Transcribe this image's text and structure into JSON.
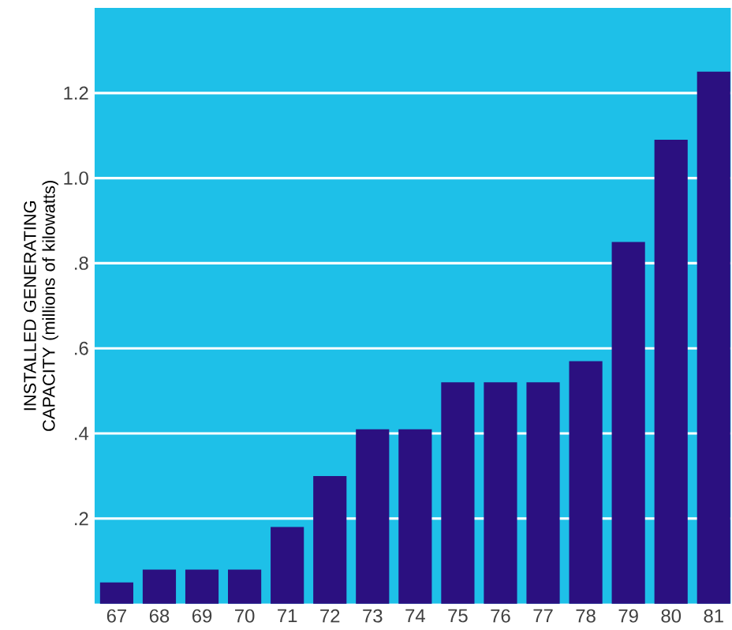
{
  "chart_data": {
    "type": "bar",
    "ylabel": "INSTALLED GENERATING CAPACITY (millions of kilowatts)",
    "categories": [
      "67",
      "68",
      "69",
      "70",
      "71",
      "72",
      "73",
      "74",
      "75",
      "76",
      "77",
      "78",
      "79",
      "80",
      "81"
    ],
    "values": [
      0.05,
      0.08,
      0.08,
      0.08,
      0.18,
      0.3,
      0.41,
      0.41,
      0.52,
      0.52,
      0.52,
      0.57,
      0.85,
      1.09,
      1.25
    ],
    "color": "#2b1080",
    "ylim": [
      0,
      1.4
    ],
    "yticks": [
      {
        "value": 0.2,
        "label": ".2"
      },
      {
        "value": 0.4,
        "label": ".4"
      },
      {
        "value": 0.6,
        "label": ".6"
      },
      {
        "value": 0.8,
        "label": ".8"
      },
      {
        "value": 1.0,
        "label": "1.0"
      },
      1.2
    ],
    "grid": "y"
  }
}
